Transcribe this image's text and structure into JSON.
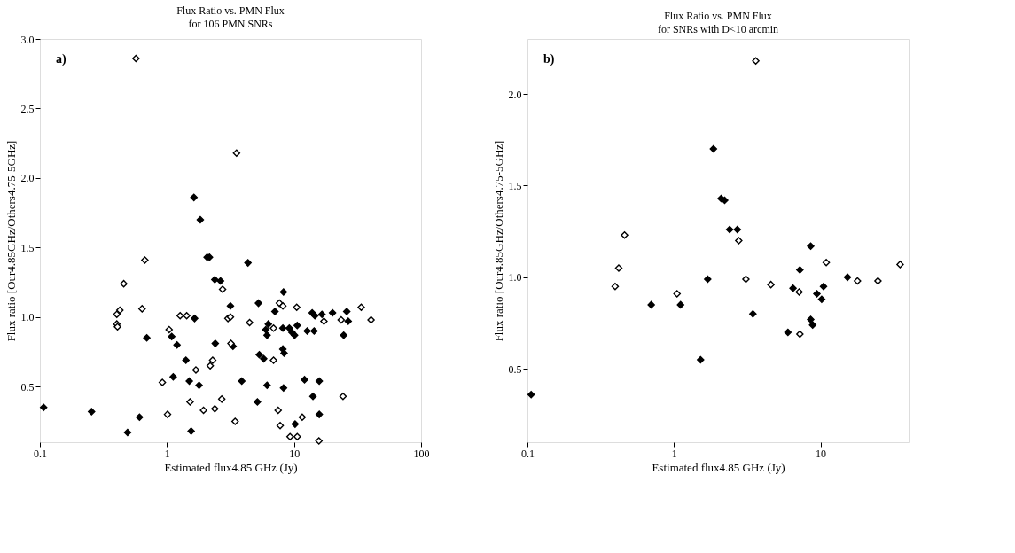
{
  "chart_data": [
    {
      "type": "scatter",
      "title": "Flux Ratio vs. PMN Flux",
      "subtitle": "for 106 PMN SNRs",
      "xlabel": "Estimated flux4.85 GHz (Jy)",
      "ylabel": "Flux ratio [Our4.85GHz/Others4.75-5GHz]",
      "annotations": [
        "a)"
      ],
      "log": "x",
      "marker": "diamond",
      "grid": false,
      "legend": false,
      "xlim": [
        0.1,
        100
      ],
      "xticks": [
        0.1,
        1,
        10,
        100
      ],
      "ylim": [
        0.1,
        3.0
      ],
      "yticks": [
        0.5,
        {
          "value": 1.0,
          "label": "1.0"
        },
        1.5,
        {
          "value": 2.0,
          "label": "2.0"
        },
        2.5,
        {
          "value": 3.0,
          "label": "3.0"
        }
      ],
      "series": [
        {
          "color": "#000000",
          "x": [
            1.63,
            1.83,
            2.07,
            2.16,
            4.34,
            2.38,
            2.64,
            8.27,
            5.25,
            3.16,
            7.08,
            13.9,
            14.6,
            16.6,
            20.1,
            26.0,
            26.7,
            1.65,
            6.28,
            6.0,
            6.14,
            8.17,
            9.18,
            9.62,
            10.1,
            10.6,
            12.7,
            14.4,
            24.6,
            0.694,
            1.09,
            1.2,
            2.4,
            3.31,
            5.33,
            5.77,
            8.17,
            8.35,
            1.41,
            1.12,
            1.5,
            1.79,
            3.88,
            6.14,
            8.27,
            12.1,
            15.8,
            14.1,
            5.15,
            0.107,
            0.255,
            0.608,
            15.8,
            10.2,
            0.49,
            1.55
          ],
          "values": [
            1.86,
            1.7,
            1.43,
            1.43,
            1.39,
            1.27,
            1.26,
            1.18,
            1.1,
            1.08,
            1.04,
            1.03,
            1.01,
            1.02,
            1.03,
            1.04,
            0.97,
            0.99,
            0.95,
            0.91,
            0.87,
            0.92,
            0.92,
            0.89,
            0.87,
            0.94,
            0.9,
            0.9,
            0.87,
            0.85,
            0.86,
            0.8,
            0.81,
            0.79,
            0.73,
            0.7,
            0.77,
            0.74,
            0.69,
            0.57,
            0.54,
            0.51,
            0.54,
            0.51,
            0.49,
            0.55,
            0.54,
            0.43,
            0.39,
            0.35,
            0.32,
            0.28,
            0.3,
            0.23,
            0.17,
            0.18
          ]
        },
        {
          "color": "#ffffff",
          "x": [
            0.57,
            3.53,
            0.67,
            0.457,
            2.74,
            7.67,
            8.17,
            10.5,
            33.8,
            0.426,
            0.403,
            0.637,
            23.5,
            40.4,
            17.2,
            1.27,
            1.43,
            3.02,
            3.16,
            4.47,
            0.403,
            0.408,
            1.04,
            6.9,
            3.19,
            6.9,
            2.29,
            2.19,
            1.69,
            0.92,
            24.3,
            1.52,
            2.7,
            1.94,
            2.38,
            7.5,
            1.01,
            11.6,
            3.44,
            7.78,
            9.31,
            10.6,
            15.7
          ],
          "values": [
            2.86,
            2.18,
            1.41,
            1.24,
            1.2,
            1.1,
            1.08,
            1.07,
            1.07,
            1.05,
            1.02,
            1.06,
            0.98,
            0.98,
            0.97,
            1.01,
            1.01,
            0.99,
            1.0,
            0.96,
            0.95,
            0.93,
            0.91,
            0.92,
            0.81,
            0.69,
            0.69,
            0.65,
            0.62,
            0.53,
            0.43,
            0.39,
            0.41,
            0.33,
            0.34,
            0.33,
            0.3,
            0.28,
            0.25,
            0.22,
            0.14,
            0.14,
            0.11
          ]
        }
      ]
    },
    {
      "type": "scatter",
      "title": "Flux Ratio vs. PMN Flux",
      "subtitle": "for SNRs with D<10 arcmin",
      "xlabel": "Estimated flux4.85 GHz (Jy)",
      "ylabel": "Flux ratio [Our4.85GHz/Others4.75-5GHz]",
      "annotations": [
        "b)"
      ],
      "log": "x",
      "marker": "diamond",
      "grid": false,
      "legend": false,
      "xlim": [
        0.1,
        40
      ],
      "xticks": [
        0.1,
        1,
        10
      ],
      "ylim": [
        0.1,
        2.3
      ],
      "yticks": [
        0.5,
        {
          "value": 1.0,
          "label": "1.0"
        },
        1.5,
        {
          "value": 2.0,
          "label": "2.0"
        }
      ],
      "series": [
        {
          "color": "#000000",
          "x": [
            1.86,
            2.1,
            2.22,
            2.4,
            2.71,
            8.58,
            7.24,
            1.7,
            15.3,
            6.5,
            10.5,
            9.46,
            10.2,
            0.7,
            1.11,
            3.46,
            8.58,
            8.85,
            6.0,
            1.52,
            0.106
          ],
          "values": [
            1.7,
            1.43,
            1.42,
            1.26,
            1.26,
            1.17,
            1.04,
            0.99,
            1.0,
            0.94,
            0.95,
            0.91,
            0.88,
            0.85,
            0.85,
            0.8,
            0.77,
            0.74,
            0.7,
            0.55,
            0.36
          ]
        },
        {
          "color": "#ffffff",
          "x": [
            3.62,
            0.46,
            2.77,
            10.96,
            35,
            0.42,
            0.397,
            3.1,
            17.9,
            24.7,
            4.59,
            7.16,
            1.05,
            7.24
          ],
          "values": [
            2.18,
            1.23,
            1.2,
            1.08,
            1.07,
            1.05,
            0.95,
            0.99,
            0.98,
            0.98,
            0.96,
            0.92,
            0.91,
            0.69
          ]
        }
      ]
    }
  ]
}
